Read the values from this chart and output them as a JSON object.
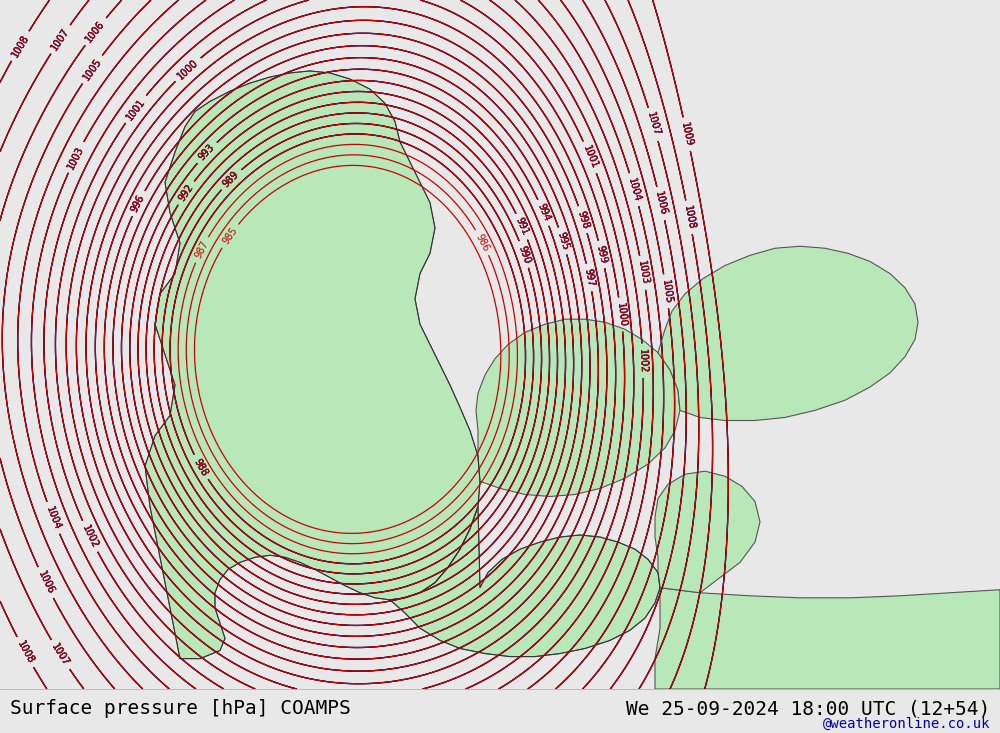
{
  "title_left": "Surface pressure [hPa] COAMPS",
  "title_right": "We 25-09-2024 18:00 UTC (12+54)",
  "watermark": "@weatheronline.co.uk",
  "bg_color": "#e8e8e8",
  "land_color": "#b8e8b8",
  "sea_color": "#e8e8e8",
  "contour_color_blue": "#0000cc",
  "contour_color_black": "#000000",
  "contour_color_red": "#cc0000",
  "text_color": "#000000",
  "title_fontsize": 14,
  "watermark_fontsize": 10,
  "figwidth": 10.0,
  "figheight": 7.33
}
